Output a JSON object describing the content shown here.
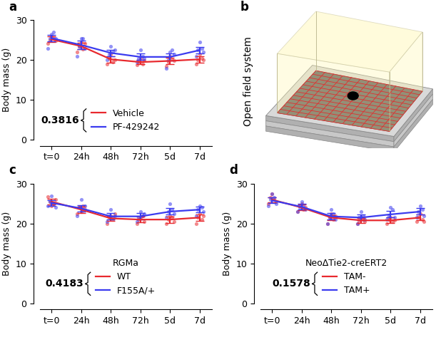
{
  "chart_data": [
    {
      "type": "line",
      "panel": "a",
      "categories": [
        "t=0",
        "24h",
        "48h",
        "72h",
        "5d",
        "7d"
      ],
      "y_label": "Body mass (g)",
      "ylim": [
        0,
        30
      ],
      "yticks": [
        0,
        10,
        20,
        30
      ],
      "annotation": "0.3816",
      "legend": "lower center",
      "series": [
        {
          "name": "Vehicle",
          "color": "#e8292e",
          "marker": "o",
          "values": [
            25.2,
            23.5,
            20.2,
            19.5,
            19.8,
            20.2
          ],
          "error": [
            0.7,
            0.8,
            0.8,
            0.5,
            0.8,
            0.8
          ],
          "points": [
            [
              24.2,
              25.0,
              26.0,
              25.5,
              24.8
            ],
            [
              22.0,
              23.5,
              24.5,
              22.8,
              24.2
            ],
            [
              19.0,
              20.5,
              21.5,
              19.5,
              20.0
            ],
            [
              18.8,
              19.5,
              20.5,
              19.0,
              19.8
            ],
            [
              18.5,
              19.5,
              21.0,
              20.2,
              19.8
            ],
            [
              19.0,
              20.0,
              21.5,
              20.5,
              20.0
            ]
          ]
        },
        {
          "name": "PF-429242",
          "color": "#3b3bef",
          "marker": "o",
          "values": [
            25.5,
            23.8,
            21.8,
            20.8,
            20.8,
            22.5
          ],
          "error": [
            0.8,
            1.0,
            0.8,
            0.8,
            0.9,
            0.8
          ],
          "points": [
            [
              23.0,
              25.5,
              26.5,
              27.0,
              25.5
            ],
            [
              21.0,
              23.5,
              25.5,
              25.5,
              23.0
            ],
            [
              20.0,
              21.5,
              23.5,
              22.0,
              22.5
            ],
            [
              19.5,
              20.5,
              22.5,
              21.0,
              20.5
            ],
            [
              18.0,
              20.0,
              22.0,
              22.5,
              21.5
            ],
            [
              21.0,
              22.5,
              24.5,
              23.0,
              22.0
            ]
          ]
        }
      ]
    },
    {
      "type": "line",
      "panel": "c",
      "categories": [
        "t=0",
        "24h",
        "48h",
        "72h",
        "5d",
        "7d"
      ],
      "y_label": "Body mass (g)",
      "ylim": [
        0,
        30
      ],
      "yticks": [
        0,
        10,
        20,
        30
      ],
      "annotation": "0.4183",
      "legend": "lower center",
      "legend_title": "RGMa",
      "series": [
        {
          "name": "WT",
          "color": "#e8292e",
          "marker": "o",
          "values": [
            25.5,
            23.5,
            21.3,
            21.0,
            21.0,
            21.5
          ],
          "error": [
            0.7,
            0.8,
            0.7,
            0.7,
            0.8,
            0.8
          ],
          "points": [
            [
              26.8,
              25.5,
              24.5,
              25.0,
              26.0
            ],
            [
              22.5,
              24.0,
              23.0,
              24.5,
              23.5
            ],
            [
              20.0,
              21.5,
              22.0,
              21.0,
              22.5
            ],
            [
              20.0,
              21.0,
              21.5,
              22.0,
              20.5
            ],
            [
              20.0,
              21.0,
              22.0,
              21.5,
              20.5
            ],
            [
              20.0,
              21.5,
              22.5,
              21.0,
              22.0
            ]
          ]
        },
        {
          "name": "F155A/+",
          "color": "#3b3bef",
          "marker": "o",
          "values": [
            25.2,
            23.8,
            21.8,
            21.8,
            23.0,
            23.5
          ],
          "error": [
            0.7,
            0.8,
            0.8,
            0.8,
            0.8,
            0.7
          ],
          "points": [
            [
              24.5,
              25.5,
              27.0,
              25.0,
              24.0
            ],
            [
              22.0,
              24.0,
              26.0,
              23.5,
              24.5
            ],
            [
              20.5,
              22.0,
              23.5,
              21.5,
              22.0
            ],
            [
              20.5,
              21.5,
              23.0,
              22.0,
              22.5
            ],
            [
              21.5,
              23.0,
              25.0,
              23.5,
              22.5
            ],
            [
              22.0,
              23.5,
              24.5,
              24.0,
              23.0
            ]
          ]
        }
      ]
    },
    {
      "type": "line",
      "panel": "d",
      "categories": [
        "t=0",
        "24h",
        "48h",
        "72h",
        "5d",
        "7d"
      ],
      "y_label": "Body mass (g)",
      "ylim": [
        0,
        30
      ],
      "yticks": [
        0,
        10,
        20,
        30
      ],
      "annotation": "0.1578",
      "legend": "lower center",
      "legend_title": "NeoΔTie2-creERT2",
      "series": [
        {
          "name": "TAM-",
          "color": "#e8292e",
          "marker": "o",
          "values": [
            26.0,
            24.0,
            21.5,
            20.8,
            20.8,
            21.5
          ],
          "error": [
            0.6,
            0.7,
            0.6,
            0.6,
            0.7,
            0.7
          ],
          "points": [
            [
              25.0,
              26.5,
              27.5,
              26.0,
              25.5
            ],
            [
              23.0,
              24.5,
              25.0,
              23.5,
              24.0
            ],
            [
              20.0,
              21.5,
              22.5,
              21.0,
              22.0
            ],
            [
              20.0,
              20.5,
              21.5,
              21.0,
              20.5
            ],
            [
              20.0,
              21.0,
              21.5,
              20.5,
              20.8
            ],
            [
              20.5,
              21.5,
              22.5,
              21.0,
              20.5
            ]
          ]
        },
        {
          "name": "TAM+",
          "color": "#3b3bef",
          "marker": "o",
          "values": [
            25.8,
            24.2,
            21.8,
            21.5,
            22.3,
            23.0
          ],
          "error": [
            0.7,
            0.7,
            0.8,
            0.7,
            0.8,
            0.8
          ],
          "points": [
            [
              24.5,
              26.0,
              27.5,
              26.5,
              25.0
            ],
            [
              23.0,
              24.0,
              25.5,
              24.5,
              23.5
            ],
            [
              20.0,
              21.5,
              23.5,
              22.5,
              21.0
            ],
            [
              20.0,
              21.5,
              23.0,
              22.0,
              21.0
            ],
            [
              21.0,
              22.0,
              24.0,
              23.5,
              21.5
            ],
            [
              21.5,
              23.0,
              24.5,
              23.5,
              22.0
            ]
          ]
        }
      ]
    }
  ],
  "diagram": {
    "panel": "b",
    "label": "Open field system"
  }
}
